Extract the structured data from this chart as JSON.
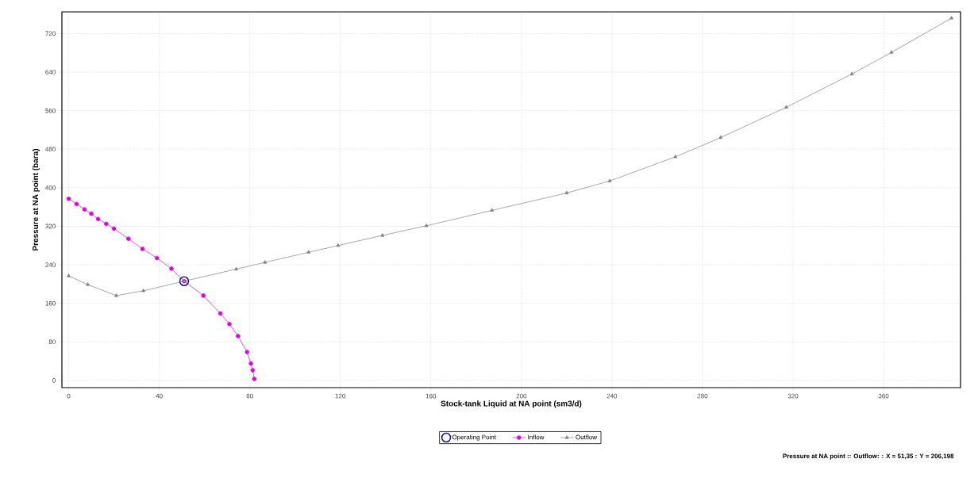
{
  "chart_data": {
    "type": "line",
    "xlabel": "Stock-tank Liquid at NA point (sm3/d)",
    "ylabel": "Pressure at NA point (bara)",
    "xlim": [
      -3,
      394
    ],
    "ylim": [
      -15,
      765
    ],
    "xticks": [
      0,
      40,
      80,
      120,
      160,
      200,
      240,
      280,
      320,
      360
    ],
    "yticks": [
      0,
      80,
      160,
      240,
      320,
      400,
      480,
      560,
      640,
      720
    ],
    "grid": true,
    "legend": "bottom",
    "annotations": [
      "Pressure at NA point :: Outflow: : X = 51,35 : Y = 206,198"
    ],
    "series": [
      {
        "name": "Operating Point",
        "type": "scatter",
        "marker": "circle",
        "color": "#1a1a8c",
        "x": [
          51
        ],
        "values": [
          206
        ]
      },
      {
        "name": "Inflow",
        "marker": "circle",
        "color": "#e000e0",
        "x": [
          0,
          3.5,
          7,
          10,
          13,
          16.6,
          20,
          26.4,
          32.6,
          39,
          45.4,
          51,
          59.5,
          67,
          71,
          74.8,
          78.8,
          80.5,
          81.3,
          82
        ],
        "values": [
          377,
          366,
          355,
          346,
          335,
          325,
          315,
          294,
          273,
          254,
          232,
          206,
          176,
          139,
          117,
          92,
          59,
          35,
          21,
          3
        ]
      },
      {
        "name": "Outflow",
        "marker": "triangle",
        "color": "#808080",
        "x": [
          0,
          8.4,
          21,
          33,
          51,
          74,
          86.7,
          106,
          119,
          138.6,
          158,
          187,
          220,
          239,
          268,
          288,
          317,
          346,
          363.5,
          390
        ],
        "values": [
          217,
          199,
          176,
          186,
          206,
          231,
          245,
          266,
          280,
          301,
          321,
          353,
          389,
          414,
          464,
          504,
          567,
          636,
          681,
          752
        ]
      }
    ]
  }
}
